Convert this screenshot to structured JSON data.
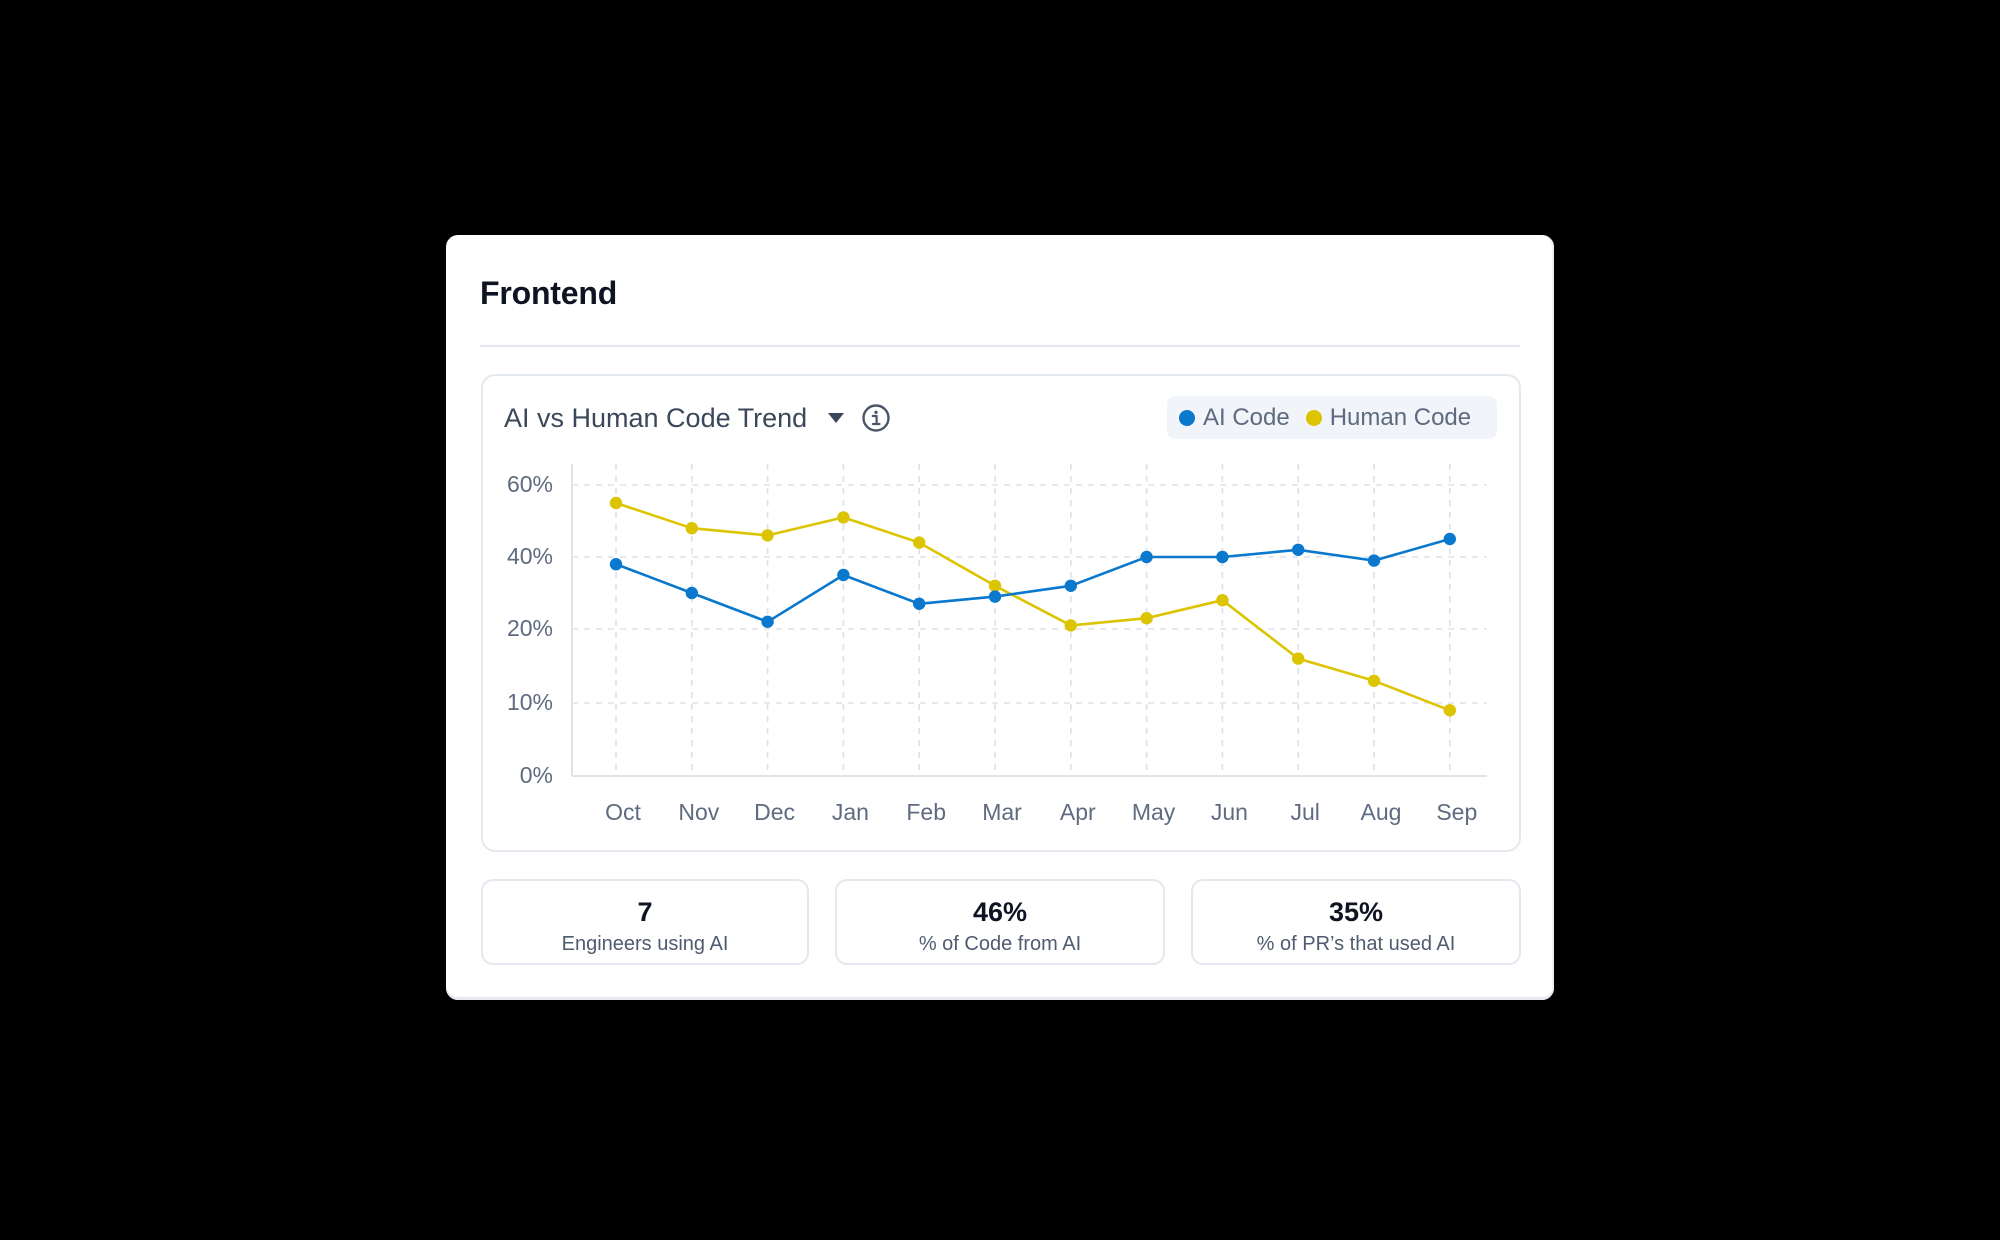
{
  "card": {
    "title": "Frontend"
  },
  "chart_panel": {
    "title": "AI vs Human Code Trend",
    "dropdown_icon": "caret-down-icon",
    "info_icon": "info-icon",
    "legend": [
      {
        "label": "AI Code",
        "color": "#0a78cd"
      },
      {
        "label": "Human Code",
        "color": "#dcc400"
      }
    ]
  },
  "chart_data": {
    "type": "line",
    "title": "AI vs Human Code Trend",
    "xlabel": "",
    "ylabel": "",
    "categories": [
      "Oct",
      "Nov",
      "Dec",
      "Jan",
      "Feb",
      "Mar",
      "Apr",
      "May",
      "Jun",
      "Jul",
      "Aug",
      "Sep"
    ],
    "y_ticks": [
      "60%",
      "40%",
      "20%",
      "10%",
      "0%"
    ],
    "y_tick_values": [
      60,
      40,
      20,
      10,
      0
    ],
    "ylim": [
      0,
      60
    ],
    "grid": true,
    "legend_position": "top-right",
    "series": [
      {
        "name": "AI Code",
        "color": "#0a78cd",
        "values": [
          38,
          30,
          22,
          35,
          27,
          29,
          32,
          40,
          40,
          42,
          39,
          45
        ]
      },
      {
        "name": "Human Code",
        "color": "#dcc400",
        "values": [
          55,
          48,
          46,
          51,
          44,
          32,
          21,
          23,
          28,
          16,
          13,
          9
        ]
      }
    ]
  },
  "stats": [
    {
      "value": "7",
      "label": "Engineers using AI"
    },
    {
      "value": "46%",
      "label": "% of Code from AI"
    },
    {
      "value": "35%",
      "label": "% of PR’s that used AI"
    }
  ]
}
